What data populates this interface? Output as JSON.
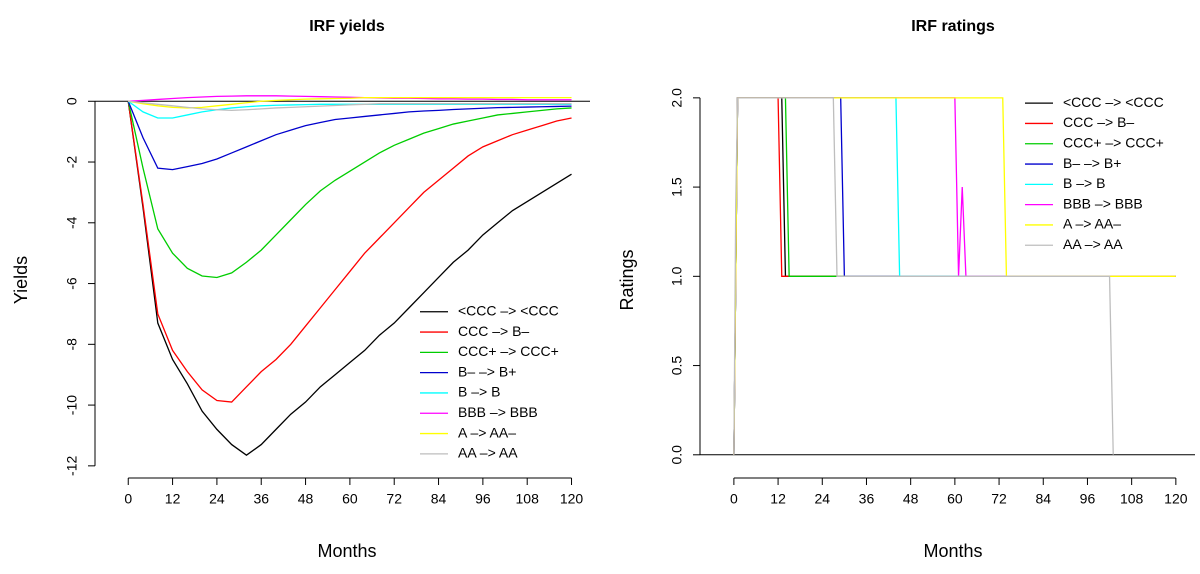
{
  "chart_data": [
    {
      "type": "line",
      "title": "IRF yields",
      "xlabel": "Months",
      "ylabel": "Yields",
      "xlim": [
        -9,
        125
      ],
      "ylim": [
        -12.4,
        0.7
      ],
      "xticks": [
        0,
        12,
        24,
        36,
        48,
        60,
        72,
        84,
        96,
        108,
        120
      ],
      "yticks": [
        0,
        -2,
        -4,
        -6,
        -8,
        -10,
        -12
      ],
      "hlines": [
        0
      ],
      "legend": "bottom-right",
      "x": [
        0,
        4,
        8,
        12,
        16,
        20,
        24,
        28,
        32,
        36,
        40,
        44,
        48,
        52,
        56,
        60,
        64,
        68,
        72,
        76,
        80,
        84,
        88,
        92,
        96,
        100,
        104,
        108,
        112,
        116,
        120
      ],
      "series": [
        {
          "name": "<CCC –> <CCC",
          "color": "#000000",
          "values": [
            0,
            -3.5,
            -7.3,
            -8.5,
            -9.3,
            -10.2,
            -10.8,
            -11.3,
            -11.65,
            -11.3,
            -10.8,
            -10.3,
            -9.9,
            -9.4,
            -9.0,
            -8.6,
            -8.2,
            -7.7,
            -7.3,
            -6.8,
            -6.3,
            -5.8,
            -5.3,
            -4.9,
            -4.4,
            -4.0,
            -3.6,
            -3.3,
            -3.0,
            -2.7,
            -2.4
          ]
        },
        {
          "name": "CCC –> B–",
          "color": "#ff0000",
          "values": [
            0,
            -3.4,
            -7.0,
            -8.2,
            -8.9,
            -9.5,
            -9.85,
            -9.9,
            -9.4,
            -8.9,
            -8.5,
            -8.0,
            -7.4,
            -6.8,
            -6.2,
            -5.6,
            -5.0,
            -4.5,
            -4.0,
            -3.5,
            -3.0,
            -2.6,
            -2.2,
            -1.8,
            -1.5,
            -1.3,
            -1.1,
            -0.95,
            -0.8,
            -0.65,
            -0.55
          ]
        },
        {
          "name": "CCC+ –> CCC+",
          "color": "#00cd00",
          "values": [
            0,
            -2.2,
            -4.2,
            -5.0,
            -5.5,
            -5.75,
            -5.8,
            -5.65,
            -5.3,
            -4.9,
            -4.4,
            -3.9,
            -3.4,
            -2.95,
            -2.6,
            -2.3,
            -2.0,
            -1.7,
            -1.45,
            -1.25,
            -1.05,
            -0.9,
            -0.75,
            -0.65,
            -0.55,
            -0.45,
            -0.4,
            -0.35,
            -0.3,
            -0.25,
            -0.22
          ]
        },
        {
          "name": "B– –> B+",
          "color": "#0000cd",
          "values": [
            0,
            -1.2,
            -2.2,
            -2.25,
            -2.15,
            -2.05,
            -1.9,
            -1.7,
            -1.5,
            -1.3,
            -1.1,
            -0.95,
            -0.8,
            -0.7,
            -0.6,
            -0.55,
            -0.5,
            -0.45,
            -0.4,
            -0.35,
            -0.32,
            -0.3,
            -0.27,
            -0.25,
            -0.23,
            -0.21,
            -0.2,
            -0.19,
            -0.18,
            -0.17,
            -0.16
          ]
        },
        {
          "name": "B –> B",
          "color": "#00ffff",
          "values": [
            0,
            -0.35,
            -0.55,
            -0.55,
            -0.45,
            -0.35,
            -0.28,
            -0.22,
            -0.18,
            -0.15,
            -0.13,
            -0.12,
            -0.11,
            -0.1,
            -0.1,
            -0.1,
            -0.1,
            -0.1,
            -0.1,
            -0.1,
            -0.1,
            -0.1,
            -0.1,
            -0.1,
            -0.1,
            -0.1,
            -0.1,
            -0.1,
            -0.1,
            -0.1,
            -0.1
          ]
        },
        {
          "name": "BBB –> BBB",
          "color": "#ff00ff",
          "values": [
            0,
            0.03,
            0.06,
            0.09,
            0.12,
            0.14,
            0.16,
            0.17,
            0.18,
            0.18,
            0.18,
            0.17,
            0.16,
            0.15,
            0.14,
            0.13,
            0.12,
            0.11,
            0.1,
            0.1,
            0.09,
            0.08,
            0.08,
            0.07,
            0.07,
            0.06,
            0.06,
            0.05,
            0.05,
            0.05,
            0.05
          ]
        },
        {
          "name": "A –> AA–",
          "color": "#ffff00",
          "values": [
            0,
            -0.08,
            -0.15,
            -0.2,
            -0.22,
            -0.2,
            -0.15,
            -0.1,
            -0.05,
            0,
            0.03,
            0.05,
            0.07,
            0.08,
            0.09,
            0.1,
            0.12,
            0.12,
            0.12,
            0.12,
            0.12,
            0.12,
            0.12,
            0.12,
            0.12,
            0.12,
            0.12,
            0.12,
            0.12,
            0.12,
            0.12
          ]
        },
        {
          "name": "AA –> AA",
          "color": "#bebebe",
          "values": [
            0,
            -0.05,
            -0.1,
            -0.15,
            -0.2,
            -0.25,
            -0.28,
            -0.3,
            -0.28,
            -0.25,
            -0.22,
            -0.2,
            -0.18,
            -0.16,
            -0.14,
            -0.12,
            -0.1,
            -0.08,
            -0.08,
            -0.08,
            -0.08,
            -0.08,
            -0.08,
            -0.08,
            -0.08,
            -0.08,
            -0.08,
            -0.08,
            -0.08,
            -0.08,
            -0.08
          ]
        }
      ]
    },
    {
      "type": "line",
      "title": "IRF ratings",
      "xlabel": "Months",
      "ylabel": "Ratings",
      "xlim": [
        -9.2,
        125.2
      ],
      "ylim": [
        -0.13,
        2.1
      ],
      "xticks": [
        0,
        12,
        24,
        36,
        48,
        60,
        72,
        84,
        96,
        108,
        120
      ],
      "yticks": [
        {
          "value": 0,
          "label": "0.0"
        },
        0.5,
        {
          "value": 1,
          "label": "1.0"
        },
        1.5,
        {
          "value": 2,
          "label": "2.0"
        }
      ],
      "hlines": [
        0
      ],
      "legend": "top-right",
      "series": [
        {
          "name": "<CCC –> <CCC",
          "color": "#000000",
          "x": [
            0,
            1,
            13,
            14,
            120
          ],
          "values": [
            0,
            2,
            2,
            1,
            1
          ]
        },
        {
          "name": "CCC –> B–",
          "color": "#ff0000",
          "x": [
            0,
            1,
            12,
            13,
            120
          ],
          "values": [
            0,
            2,
            2,
            1,
            1
          ]
        },
        {
          "name": "CCC+ –> CCC+",
          "color": "#00cd00",
          "x": [
            0,
            1,
            14,
            15,
            120
          ],
          "values": [
            0,
            2,
            2,
            1,
            1
          ]
        },
        {
          "name": "B– –> B+",
          "color": "#0000cd",
          "x": [
            0,
            1,
            29,
            30,
            120
          ],
          "values": [
            0,
            2,
            2,
            1,
            1
          ]
        },
        {
          "name": "B –> B",
          "color": "#00ffff",
          "x": [
            0,
            1,
            44,
            45,
            120
          ],
          "values": [
            0,
            2,
            2,
            1,
            1
          ]
        },
        {
          "name": "BBB –> BBB",
          "color": "#ff00ff",
          "x": [
            0,
            1,
            60,
            61,
            62,
            63,
            120
          ],
          "values": [
            0,
            2,
            2,
            1,
            1.5,
            1,
            1
          ]
        },
        {
          "name": "A –> AA–",
          "color": "#ffff00",
          "x": [
            0,
            1,
            73,
            74,
            120
          ],
          "values": [
            0,
            2,
            2,
            1,
            1
          ]
        },
        {
          "name": "AA –> AA",
          "color": "#bebebe",
          "x": [
            0,
            0.5,
            1,
            27,
            28,
            102,
            103
          ],
          "values": [
            0,
            1.4,
            2,
            2,
            1,
            1,
            0
          ]
        }
      ]
    }
  ]
}
